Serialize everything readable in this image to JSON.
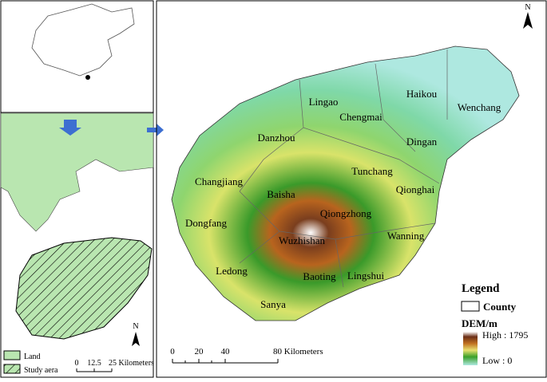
{
  "inset": {
    "north": "N",
    "legend": {
      "land": "Land",
      "study_area": "Study aera"
    },
    "scale": {
      "start": "0",
      "mid": "12.5",
      "end": "25 Kilometers"
    }
  },
  "main_map": {
    "north": "N",
    "counties": [
      "Lingao",
      "Haikou",
      "Wenchang",
      "Chengmai",
      "Danzhou",
      "Dingan",
      "Tunchang",
      "Changjiang",
      "Baisha",
      "Qionghai",
      "Qiongzhong",
      "Dongfang",
      "Wuzhishan",
      "Wanning",
      "Ledong",
      "Baoting",
      "Lingshui",
      "Sanya"
    ],
    "legend": {
      "title": "Legend",
      "county": "County",
      "dem_title": "DEM/m",
      "high": "High : 1795",
      "low": "Low : 0"
    },
    "scale": {
      "start": "0",
      "t1": "20",
      "t2": "40",
      "end": "80 Kilometers"
    }
  }
}
